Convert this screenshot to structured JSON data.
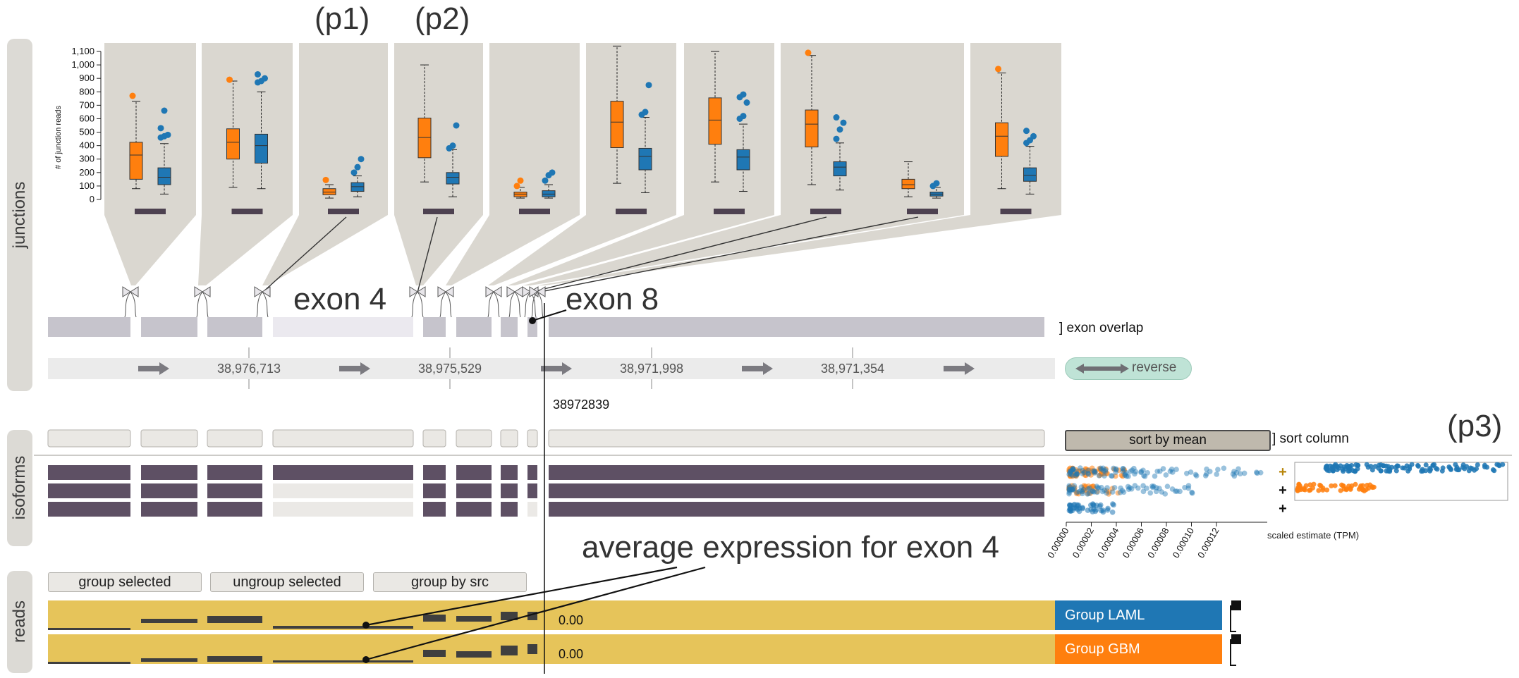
{
  "sections": {
    "junctions": "junctions",
    "isoforms": "isoforms",
    "reads": "reads"
  },
  "annotations": {
    "p1": "(p1)",
    "p2": "(p2)",
    "p3": "(p3)",
    "exon4": "exon 4",
    "exon8": "exon 8",
    "average": "average expression for exon 4"
  },
  "junctions_panel": {
    "ylabel": "# of junction reads",
    "yticks": [
      "0",
      "100",
      "200",
      "300",
      "400",
      "500",
      "600",
      "700",
      "800",
      "900",
      "1,000",
      "1,100"
    ],
    "colors": {
      "orange": "#ff7f0e",
      "blue": "#1f77b4",
      "panel": "#dad7d0",
      "marker": "#4d4150"
    },
    "boxes": [
      {
        "o": [
          80,
          150,
          330,
          425,
          730
        ],
        "oo": [
          770
        ],
        "b": [
          40,
          110,
          165,
          235,
          415
        ],
        "bo": [
          460,
          470,
          480,
          530,
          660
        ]
      },
      {
        "o": [
          90,
          300,
          425,
          525,
          880
        ],
        "oo": [
          890
        ],
        "b": [
          80,
          270,
          400,
          485,
          800
        ],
        "bo": [
          870,
          880,
          900,
          930
        ]
      },
      {
        "o": [
          10,
          35,
          55,
          80,
          110
        ],
        "oo": [
          145
        ],
        "b": [
          20,
          60,
          95,
          125,
          175
        ],
        "bo": [
          200,
          240,
          300
        ]
      },
      {
        "o": [
          130,
          310,
          460,
          605,
          1000
        ],
        "oo": [],
        "b": [
          20,
          115,
          165,
          200,
          370
        ],
        "bo": [
          380,
          400,
          550
        ]
      },
      {
        "o": [
          10,
          20,
          40,
          55,
          90
        ],
        "oo": [
          100,
          140
        ],
        "b": [
          10,
          20,
          40,
          65,
          110
        ],
        "bo": [
          140,
          180,
          200
        ]
      },
      {
        "o": [
          120,
          385,
          575,
          730,
          1140
        ],
        "oo": [],
        "b": [
          50,
          220,
          320,
          380,
          610
        ],
        "bo": [
          630,
          650,
          850
        ]
      },
      {
        "o": [
          130,
          410,
          590,
          755,
          1100
        ],
        "oo": [],
        "b": [
          60,
          220,
          315,
          370,
          560
        ],
        "bo": [
          600,
          620,
          720,
          760,
          780
        ]
      },
      {
        "o": [
          110,
          390,
          560,
          665,
          1070
        ],
        "oo": [
          1090
        ],
        "b": [
          70,
          175,
          240,
          280,
          420
        ],
        "bo": [
          450,
          520,
          570,
          610
        ]
      },
      {
        "o": [
          20,
          80,
          110,
          150,
          280
        ],
        "oo": [],
        "b": [
          10,
          25,
          40,
          55,
          90
        ],
        "bo": [
          100,
          120
        ]
      },
      {
        "o": [
          80,
          320,
          470,
          570,
          940
        ],
        "oo": [
          970
        ],
        "b": [
          40,
          135,
          180,
          235,
          395
        ],
        "bo": [
          420,
          440,
          470,
          510
        ]
      }
    ]
  },
  "gene_track": {
    "exon_overlap_label": "] exon overlap",
    "coordinates": [
      "38,976,713",
      "38,975,529",
      "38,971,998",
      "38,971,354"
    ],
    "direction_button": "reverse",
    "cursor_position": "38972839"
  },
  "isoforms_panel": {
    "sort_button": "sort by mean",
    "sort_column_label": "] sort column",
    "xlabel": "scaled estimate (TPM)",
    "xticks": [
      "0.00000",
      "0.00002",
      "0.00004",
      "0.00006",
      "0.00008",
      "0.00010",
      "0.00012"
    ],
    "expand_icons": [
      "+",
      "+",
      "+"
    ]
  },
  "reads_panel": {
    "buttons": {
      "group_selected": "group selected",
      "ungroup_selected": "ungroup selected",
      "group_by_src": "group by src"
    },
    "groups": [
      {
        "name": "Group LAML",
        "value": "0.00",
        "color": "#1f77b4"
      },
      {
        "name": "Group GBM",
        "value": "0.00",
        "color": "#ff7f0e"
      }
    ],
    "track_color": "#e6c45a"
  }
}
